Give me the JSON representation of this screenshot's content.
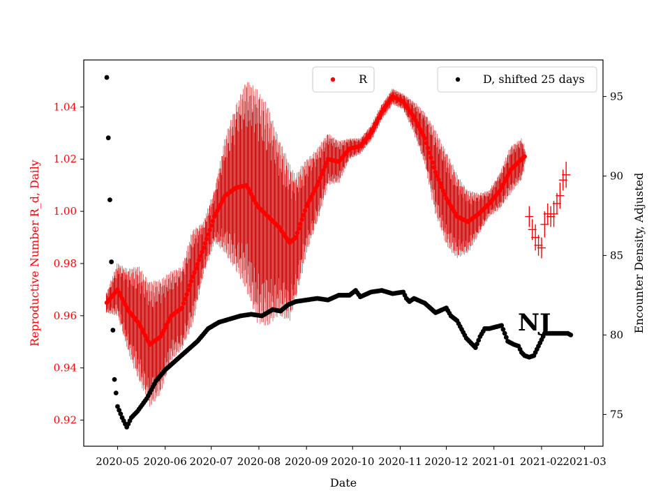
{
  "chart_data": {
    "type": "scatter",
    "xlabel": "Date",
    "ylabel_left": "Reproductive Number R_d, Daily",
    "ylabel_right": "Encounter Density, Adjusted",
    "annotation": "NJ",
    "x_ticks": [
      "2020-05",
      "2020-06",
      "2020-07",
      "2020-08",
      "2020-09",
      "2020-10",
      "2020-11",
      "2020-12",
      "2021-01",
      "2021-02",
      "2021-03"
    ],
    "x_tick_dates": [
      "2020-05-01",
      "2020-06-01",
      "2020-07-01",
      "2020-08-01",
      "2020-09-01",
      "2020-10-01",
      "2020-11-01",
      "2020-12-01",
      "2021-01-01",
      "2021-02-01",
      "2021-03-01"
    ],
    "xlim": [
      "2020-04-09",
      "2021-03-13"
    ],
    "ylim_left": [
      0.91,
      1.058
    ],
    "ylim_right": [
      73.0,
      97.3
    ],
    "y_ticks_left": [
      "0.92",
      "0.94",
      "0.96",
      "0.98",
      "1.00",
      "1.02",
      "1.04"
    ],
    "y_ticks_right": [
      "75",
      "80",
      "85",
      "90",
      "95"
    ],
    "colors": {
      "R": "#ff0000",
      "R_error": "#cc0000",
      "D": "#000000",
      "left_axis_text": "#ff0000"
    },
    "legend": [
      {
        "label": "R",
        "placement": "upper-center"
      },
      {
        "label": "D, shifted 25 days",
        "placement": "upper-right"
      }
    ],
    "series": [
      {
        "name": "R",
        "axis": "left",
        "marker": "circle",
        "dates": [
          "2020-04-24",
          "2020-05-01",
          "2020-05-08",
          "2020-05-15",
          "2020-05-22",
          "2020-05-29",
          "2020-06-05",
          "2020-06-12",
          "2020-06-19",
          "2020-06-26",
          "2020-07-03",
          "2020-07-10",
          "2020-07-17",
          "2020-07-24",
          "2020-07-31",
          "2020-08-07",
          "2020-08-14",
          "2020-08-21",
          "2020-08-25",
          "2020-09-01",
          "2020-09-08",
          "2020-09-15",
          "2020-09-22",
          "2020-09-29",
          "2020-10-06",
          "2020-10-13",
          "2020-10-20",
          "2020-10-27",
          "2020-11-03",
          "2020-11-10",
          "2020-11-17",
          "2020-11-24",
          "2020-12-01",
          "2020-12-08",
          "2020-12-15",
          "2020-12-22",
          "2020-12-29",
          "2021-01-05",
          "2021-01-12",
          "2021-01-19",
          "2021-01-21"
        ],
        "values": [
          0.965,
          0.97,
          0.962,
          0.957,
          0.949,
          0.952,
          0.96,
          0.963,
          0.975,
          0.986,
          0.998,
          1.006,
          1.009,
          1.01,
          1.002,
          0.998,
          0.994,
          0.988,
          0.99,
          1.002,
          1.01,
          1.02,
          1.019,
          1.024,
          1.025,
          1.03,
          1.038,
          1.044,
          1.042,
          1.036,
          1.028,
          1.015,
          1.005,
          0.998,
          0.996,
          0.999,
          1.003,
          1.008,
          1.016,
          1.02,
          1.021
        ],
        "errors": [
          0.004,
          0.01,
          0.016,
          0.022,
          0.024,
          0.022,
          0.017,
          0.016,
          0.018,
          0.01,
          0.01,
          0.022,
          0.032,
          0.04,
          0.045,
          0.042,
          0.034,
          0.03,
          0.024,
          0.018,
          0.014,
          0.01,
          0.008,
          0.004,
          0.003,
          0.003,
          0.003,
          0.003,
          0.003,
          0.006,
          0.01,
          0.016,
          0.018,
          0.016,
          0.012,
          0.008,
          0.005,
          0.007,
          0.009,
          0.008,
          0.003
        ]
      },
      {
        "name": "R",
        "axis": "left",
        "marker": "plus",
        "dates": [
          "2021-01-24",
          "2021-01-26",
          "2021-01-28",
          "2021-01-30",
          "2021-02-01",
          "2021-02-03",
          "2021-02-05",
          "2021-02-07",
          "2021-02-09",
          "2021-02-11",
          "2021-02-13",
          "2021-02-15",
          "2021-02-17"
        ],
        "values": [
          0.998,
          0.993,
          0.99,
          0.987,
          0.986,
          0.995,
          0.999,
          0.998,
          0.999,
          1.003,
          1.006,
          1.012,
          1.014
        ],
        "errors": [
          0.004,
          0.004,
          0.005,
          0.004,
          0.004,
          0.005,
          0.004,
          0.004,
          0.005,
          0.004,
          0.005,
          0.004,
          0.005
        ]
      },
      {
        "name": "D, shifted 25 days",
        "axis": "right",
        "marker": "circle",
        "dates": [
          "2020-04-24",
          "2020-04-25",
          "2020-04-26",
          "2020-04-27",
          "2020-04-28",
          "2020-04-29",
          "2020-05-01",
          "2020-05-04",
          "2020-05-07",
          "2020-05-10",
          "2020-05-14",
          "2020-05-20",
          "2020-05-26",
          "2020-06-01",
          "2020-06-08",
          "2020-06-15",
          "2020-06-22",
          "2020-06-29",
          "2020-07-06",
          "2020-07-13",
          "2020-07-20",
          "2020-07-27",
          "2020-08-03",
          "2020-08-10",
          "2020-08-15",
          "2020-08-20",
          "2020-08-25",
          "2020-09-01",
          "2020-09-08",
          "2020-09-15",
          "2020-09-22",
          "2020-09-29",
          "2020-10-03",
          "2020-10-06",
          "2020-10-13",
          "2020-10-20",
          "2020-10-27",
          "2020-11-03",
          "2020-11-05",
          "2020-11-07",
          "2020-11-10",
          "2020-11-17",
          "2020-11-24",
          "2020-12-01",
          "2020-12-04",
          "2020-12-08",
          "2020-12-14",
          "2020-12-20",
          "2020-12-23",
          "2020-12-26",
          "2020-12-29",
          "2021-01-02",
          "2021-01-06",
          "2021-01-10",
          "2021-01-14",
          "2021-01-17",
          "2021-01-19",
          "2021-01-21",
          "2021-01-24",
          "2021-01-27",
          "2021-02-01",
          "2021-02-03",
          "2021-02-06",
          "2021-02-10",
          "2021-02-14",
          "2021-02-18",
          "2021-02-20"
        ],
        "values": [
          96.2,
          92.4,
          88.5,
          84.6,
          80.3,
          77.2,
          75.5,
          74.8,
          74.2,
          74.8,
          75.2,
          76.0,
          77.1,
          77.8,
          78.4,
          79.0,
          79.6,
          80.4,
          80.8,
          81.0,
          81.2,
          81.3,
          81.2,
          81.6,
          81.5,
          81.9,
          82.1,
          82.2,
          82.3,
          82.2,
          82.5,
          82.5,
          82.8,
          82.4,
          82.7,
          82.8,
          82.6,
          82.7,
          82.3,
          82.1,
          82.3,
          82.0,
          81.4,
          81.7,
          81.2,
          80.9,
          79.8,
          79.2,
          79.9,
          80.4,
          80.4,
          80.5,
          80.6,
          79.6,
          79.4,
          79.3,
          78.9,
          78.7,
          78.6,
          78.7,
          79.7,
          80.1,
          80.1,
          80.1,
          80.1,
          80.1,
          80.0
        ]
      }
    ]
  }
}
